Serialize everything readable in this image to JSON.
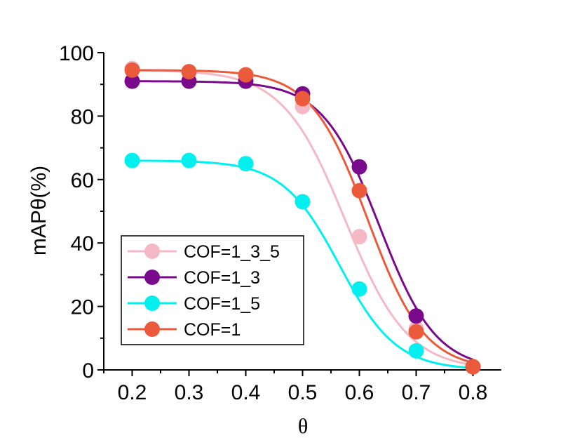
{
  "chart_data": {
    "type": "line",
    "title": "",
    "xlabel": "θ",
    "ylabel": "mAPθ(%)",
    "xlim": [
      0.15,
      0.85
    ],
    "ylim": [
      0,
      100
    ],
    "x_ticks": [
      "0.2",
      "0.3",
      "0.4",
      "0.5",
      "0.6",
      "0.7",
      "0.8"
    ],
    "y_ticks": [
      "0",
      "20",
      "40",
      "60",
      "80",
      "100"
    ],
    "x": [
      0.2,
      0.3,
      0.4,
      0.5,
      0.6,
      0.7,
      0.8
    ],
    "legend_position": "bottom-left",
    "series": [
      {
        "name": "COF=1_3_5",
        "color": "#f4b9c4",
        "values": [
          95,
          94,
          93,
          83,
          42,
          13,
          1
        ],
        "fit": {
          "top": 94.5,
          "x50": 0.575,
          "slope": 0.055
        }
      },
      {
        "name": "COF=1_3",
        "color": "#7a0a8c",
        "values": [
          91,
          91,
          91,
          87,
          64,
          17,
          1
        ],
        "fit": {
          "top": 91,
          "x50": 0.635,
          "slope": 0.05
        }
      },
      {
        "name": "COF=1_5",
        "color": "#00f0f0",
        "values": [
          66,
          66,
          65,
          53,
          25.5,
          6,
          1
        ],
        "fit": {
          "top": 66,
          "x50": 0.565,
          "slope": 0.05
        }
      },
      {
        "name": "COF=1",
        "color": "#ec5a3c",
        "values": [
          94.5,
          94,
          93,
          85.5,
          56.5,
          12,
          1
        ],
        "fit": {
          "top": 94.5,
          "x50": 0.615,
          "slope": 0.05
        }
      }
    ]
  }
}
